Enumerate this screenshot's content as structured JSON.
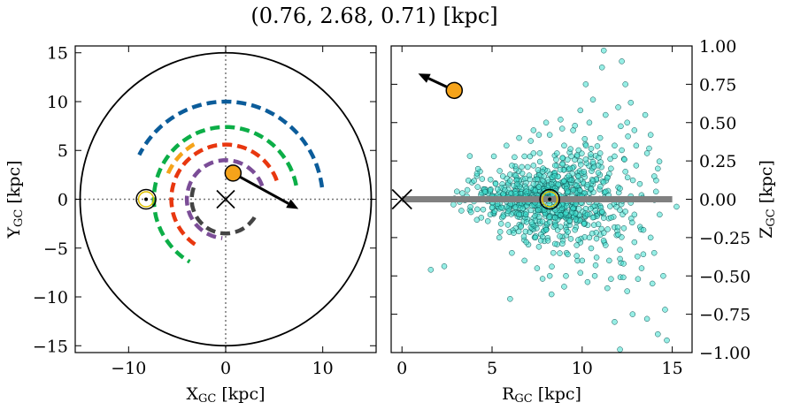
{
  "figure_title": "(0.76, 2.68, 0.71) [kpc]",
  "chart_data": [
    {
      "type": "scatter",
      "panel": "left",
      "xlabel": {
        "main": "X",
        "sub": "GC",
        "unit": " [kpc]"
      },
      "ylabel": {
        "main": "Y",
        "sub": "GC",
        "unit": " [kpc]"
      },
      "xlim": [
        -15.5,
        15.5
      ],
      "ylim": [
        -15.7,
        15.7
      ],
      "xticks": [
        {
          "value": -10,
          "label": "−10"
        },
        {
          "value": 0,
          "label": "0"
        },
        {
          "value": 10,
          "label": "10"
        }
      ],
      "yticks": [
        {
          "value": 15,
          "label": "15"
        },
        {
          "value": 10,
          "label": "10"
        },
        {
          "value": 5,
          "label": "5"
        },
        {
          "value": 0,
          "label": "0"
        },
        {
          "value": -5,
          "label": "−5"
        },
        {
          "value": -10,
          "label": "−10"
        },
        {
          "value": -15,
          "label": "−15"
        }
      ],
      "boundary_circle_radius": 15,
      "galactic_center": [
        0,
        0
      ],
      "sun_position": [
        -8.2,
        0
      ],
      "object_position": [
        0.76,
        2.68
      ],
      "object_velocity_arrow_end": [
        7.5,
        -1.0
      ],
      "object_color": "#f5a31a",
      "spiral_arms": [
        {
          "color": "#0b5c9a",
          "radius": 10.0,
          "start_deg": 7,
          "end_deg": 153
        },
        {
          "color": "#0cae47",
          "radius": 7.4,
          "start_deg": 11,
          "end_deg": 240
        },
        {
          "color": "#f5a31a",
          "radius": 6.5,
          "start_deg": 120,
          "end_deg": 160
        },
        {
          "color": "#e8370f",
          "radius": 5.6,
          "start_deg": 20,
          "end_deg": 238
        },
        {
          "color": "#7b4d97",
          "radius": 4.0,
          "start_deg": 20,
          "end_deg": 265
        },
        {
          "color": "#444444",
          "radius": 3.5,
          "start_deg": 160,
          "end_deg": 330
        }
      ]
    },
    {
      "type": "scatter",
      "panel": "right",
      "xlabel": {
        "main": "R",
        "sub": "GC",
        "unit": " [kpc]"
      },
      "ylabel": {
        "main": "Z",
        "sub": "GC",
        "unit": " [kpc]"
      },
      "xlim": [
        -0.6,
        16.1
      ],
      "ylim": [
        -1.0,
        1.0
      ],
      "xticks": [
        {
          "value": 0,
          "label": "0"
        },
        {
          "value": 5,
          "label": "5"
        },
        {
          "value": 10,
          "label": "10"
        },
        {
          "value": 15,
          "label": "15"
        }
      ],
      "yticks": [
        {
          "value": 1.0,
          "label": "1.00"
        },
        {
          "value": 0.75,
          "label": "0.75"
        },
        {
          "value": 0.5,
          "label": "0.50"
        },
        {
          "value": 0.25,
          "label": "0.25"
        },
        {
          "value": 0.0,
          "label": "0.00"
        },
        {
          "value": -0.25,
          "label": "−0.25"
        },
        {
          "value": -0.5,
          "label": "−0.50"
        },
        {
          "value": -0.75,
          "label": "−0.75"
        },
        {
          "value": -1.0,
          "label": "−1.00"
        }
      ],
      "disk_line": {
        "x_start": 0,
        "x_end": 15,
        "z": 0,
        "color": "#808080"
      },
      "galactic_center": [
        0,
        0
      ],
      "sun_position": [
        8.2,
        0
      ],
      "object_position": [
        2.9,
        0.71
      ],
      "object_velocity_arrow_end": [
        0.9,
        0.82
      ],
      "object_color": "#f5a31a",
      "star_color": "#40e0d0",
      "stars": [
        [
          1.6,
          -0.46
        ],
        [
          6.0,
          -0.65
        ],
        [
          8.3,
          -0.62
        ],
        [
          9.0,
          -0.57
        ],
        [
          9.5,
          0.45
        ],
        [
          10.2,
          0.75
        ],
        [
          10.6,
          0.65
        ],
        [
          11.2,
          0.97
        ],
        [
          12.2,
          0.9
        ],
        [
          12.4,
          0.75
        ],
        [
          13.5,
          0.55
        ],
        [
          13.8,
          0.42
        ],
        [
          14.2,
          0.2
        ],
        [
          14.0,
          -0.35
        ],
        [
          13.1,
          -0.52
        ],
        [
          12.8,
          -0.75
        ],
        [
          13.6,
          -0.78
        ],
        [
          14.2,
          -0.88
        ],
        [
          14.7,
          -0.92
        ],
        [
          14.6,
          -0.72
        ],
        [
          11.8,
          -0.8
        ],
        [
          12.1,
          -0.98
        ],
        [
          11.4,
          -0.58
        ],
        [
          10.3,
          -0.54
        ],
        [
          7.6,
          0.42
        ],
        [
          9.9,
          0.58
        ],
        [
          11.1,
          0.86
        ],
        [
          12.7,
          0.63
        ],
        [
          13.9,
          -0.55
        ],
        [
          14.5,
          -0.5
        ],
        [
          13.0,
          0.35
        ],
        [
          12.5,
          0.5
        ],
        [
          11.8,
          0.35
        ],
        [
          11.0,
          0.4
        ],
        [
          10.5,
          0.33
        ],
        [
          9.8,
          0.32
        ],
        [
          9.0,
          0.35
        ],
        [
          8.2,
          0.42
        ],
        [
          7.3,
          0.3
        ],
        [
          6.8,
          0.28
        ],
        [
          6.1,
          0.22
        ],
        [
          5.6,
          0.15
        ],
        [
          5.2,
          0.1
        ],
        [
          4.6,
          0.05
        ],
        [
          4.2,
          0.08
        ],
        [
          3.8,
          -0.05
        ],
        [
          4.9,
          -0.1
        ],
        [
          5.5,
          -0.16
        ],
        [
          6.2,
          -0.22
        ],
        [
          6.9,
          -0.28
        ],
        [
          7.6,
          -0.31
        ],
        [
          8.4,
          -0.35
        ],
        [
          9.2,
          -0.36
        ],
        [
          10.0,
          -0.4
        ],
        [
          10.8,
          -0.38
        ],
        [
          11.5,
          -0.4
        ],
        [
          12.3,
          -0.42
        ],
        [
          12.9,
          -0.28
        ],
        [
          13.4,
          -0.2
        ],
        [
          12.0,
          -0.23
        ],
        [
          11.2,
          -0.22
        ],
        [
          10.4,
          -0.25
        ],
        [
          9.6,
          -0.2
        ],
        [
          8.8,
          -0.18
        ],
        [
          8.0,
          -0.2
        ],
        [
          7.2,
          -0.15
        ],
        [
          6.5,
          -0.1
        ],
        [
          5.8,
          -0.05
        ],
        [
          5.0,
          0.02
        ],
        [
          5.7,
          0.06
        ],
        [
          6.4,
          0.1
        ],
        [
          7.1,
          0.13
        ],
        [
          7.8,
          0.18
        ],
        [
          8.5,
          0.22
        ],
        [
          9.3,
          0.2
        ],
        [
          10.1,
          0.18
        ],
        [
          10.9,
          0.22
        ],
        [
          11.6,
          0.2
        ],
        [
          12.4,
          0.18
        ],
        [
          13.2,
          0.1
        ],
        [
          12.7,
          0.02
        ],
        [
          11.9,
          -0.05
        ],
        [
          11.1,
          -0.08
        ],
        [
          10.3,
          -0.1
        ],
        [
          9.5,
          -0.06
        ],
        [
          8.7,
          -0.04
        ],
        [
          7.9,
          -0.07
        ],
        [
          7.0,
          -0.02
        ],
        [
          6.3,
          0.0
        ],
        [
          6.9,
          0.05
        ],
        [
          7.6,
          0.08
        ],
        [
          8.3,
          0.1
        ],
        [
          9.0,
          0.12
        ],
        [
          9.7,
          0.09
        ],
        [
          10.5,
          0.07
        ],
        [
          11.3,
          0.05
        ],
        [
          12.1,
          0.07
        ],
        [
          12.9,
          -0.1
        ],
        [
          13.6,
          0.0
        ],
        [
          14.1,
          0.05
        ],
        [
          5.4,
          -0.25
        ],
        [
          6.1,
          -0.35
        ],
        [
          6.8,
          -0.4
        ],
        [
          7.5,
          -0.45
        ],
        [
          8.2,
          -0.5
        ],
        [
          9.1,
          -0.5
        ],
        [
          9.9,
          -0.48
        ],
        [
          10.7,
          -0.5
        ],
        [
          11.6,
          -0.52
        ],
        [
          12.5,
          -0.6
        ],
        [
          13.3,
          -0.45
        ],
        [
          5.1,
          0.28
        ],
        [
          5.8,
          0.35
        ],
        [
          6.5,
          0.4
        ],
        [
          7.3,
          0.45
        ],
        [
          8.0,
          0.5
        ],
        [
          8.8,
          0.52
        ],
        [
          9.6,
          0.48
        ],
        [
          10.4,
          0.5
        ],
        [
          11.3,
          0.55
        ],
        [
          12.0,
          0.6
        ],
        [
          12.9,
          0.45
        ],
        [
          13.6,
          0.3
        ],
        [
          4.4,
          -0.12
        ],
        [
          4.0,
          0.12
        ],
        [
          3.6,
          0.02
        ],
        [
          14.3,
          -0.1
        ],
        [
          14.0,
          0.15
        ],
        [
          13.8,
          -0.25
        ],
        [
          8.6,
          0.3
        ],
        [
          9.4,
          0.28
        ],
        [
          10.2,
          0.26
        ],
        [
          11.0,
          0.3
        ],
        [
          11.8,
          0.28
        ],
        [
          7.4,
          -0.25
        ],
        [
          8.1,
          -0.27
        ],
        [
          8.9,
          -0.29
        ],
        [
          9.7,
          -0.3
        ],
        [
          10.5,
          -0.32
        ],
        [
          11.3,
          -0.3
        ],
        [
          12.1,
          -0.33
        ],
        [
          6.6,
          -0.18
        ],
        [
          7.3,
          0.22
        ],
        [
          6.0,
          0.12
        ],
        [
          5.3,
          -0.03
        ],
        [
          9.2,
          0.05
        ],
        [
          10.0,
          0.02
        ],
        [
          10.8,
          -0.02
        ],
        [
          11.6,
          -0.12
        ],
        [
          12.4,
          -0.08
        ],
        [
          8.5,
          -0.12
        ],
        [
          9.3,
          -0.14
        ],
        [
          10.1,
          -0.16
        ],
        [
          7.8,
          0.02
        ],
        [
          6.7,
          -0.06
        ],
        [
          12.2,
          0.32
        ],
        [
          13.0,
          0.22
        ],
        [
          11.4,
          0.14
        ],
        [
          10.6,
          0.12
        ],
        [
          9.8,
          0.15
        ]
      ]
    }
  ]
}
